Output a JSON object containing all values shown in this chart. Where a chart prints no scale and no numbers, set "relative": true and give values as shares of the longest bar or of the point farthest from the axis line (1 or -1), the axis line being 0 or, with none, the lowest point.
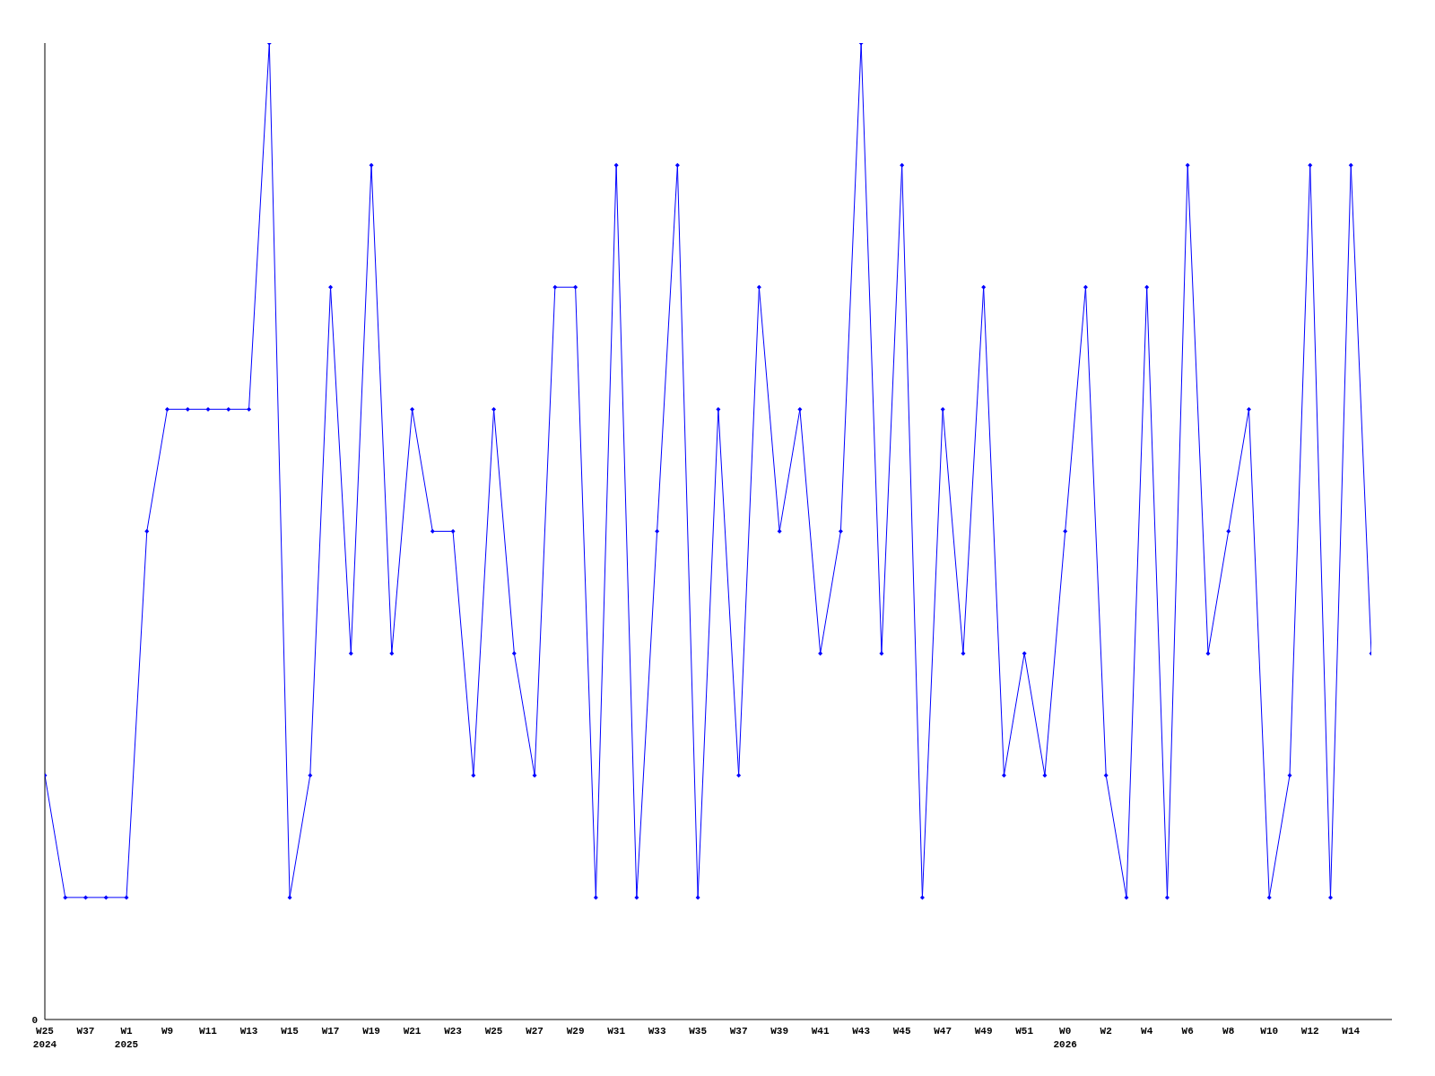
{
  "chart_data": {
    "type": "line",
    "relative": true,
    "annotations": [
      "0"
    ],
    "grid": false,
    "marker": "diamond",
    "line_style": "solid",
    "categories": [
      "W25\n2024",
      null,
      "W37",
      null,
      "W1\n2025",
      null,
      "W9",
      null,
      "W11",
      null,
      "W13",
      null,
      "W15",
      null,
      "W17",
      null,
      "W19",
      null,
      "W21",
      null,
      "W23",
      null,
      "W25",
      null,
      "W27",
      null,
      "W29",
      null,
      "W31",
      null,
      "W33",
      null,
      "W35",
      null,
      "W37",
      null,
      "W39",
      null,
      "W41",
      null,
      "W43",
      null,
      "W45",
      null,
      "W47",
      null,
      "W49",
      null,
      "W51",
      null,
      "W0\n2026",
      null,
      "W2",
      null,
      "W4",
      null,
      "W6",
      null,
      "W8",
      null,
      "W10",
      null,
      "W12",
      null,
      "W14",
      null
    ],
    "series": [
      {
        "color": "#0000ff",
        "values": [
          0.25,
          0.125,
          0.125,
          0.125,
          0.125,
          0.5,
          0.625,
          0.625,
          0.625,
          0.625,
          0.625,
          1,
          0.125,
          0.25,
          0.75,
          0.375,
          0.875,
          0.375,
          0.625,
          0.5,
          0.5,
          0.25,
          0.625,
          0.375,
          0.25,
          0.75,
          0.75,
          0.125,
          0.875,
          0.125,
          0.5,
          0.875,
          0.125,
          0.625,
          0.25,
          0.75,
          0.5,
          0.625,
          0.375,
          0.5,
          1,
          0.375,
          0.875,
          0.125,
          0.625,
          0.375,
          0.75,
          0.25,
          0.375,
          0.25,
          0.5,
          0.75,
          0.25,
          0.125,
          0.75,
          0.125,
          0.875,
          0.375,
          0.5,
          0.625,
          0.125,
          0.25,
          0.875,
          0.125,
          0.875,
          0.375
        ]
      }
    ]
  }
}
